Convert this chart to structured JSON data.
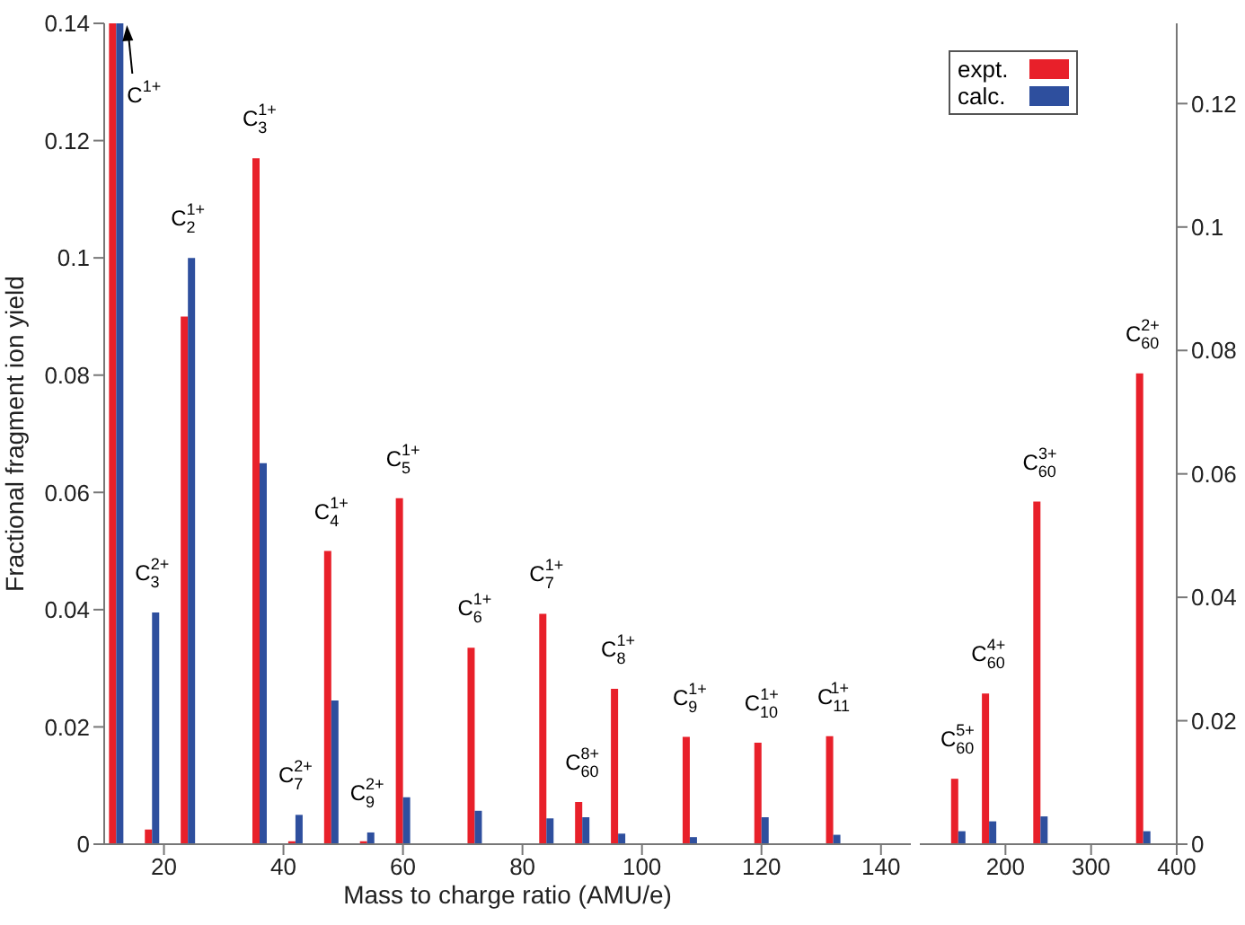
{
  "chart_data": [
    {
      "type": "bar",
      "ylabel": "Fractional fragment ion yield",
      "xlabel": "Mass to charge ratio (AMU/e)",
      "x": [
        12,
        18,
        24,
        36,
        42,
        48,
        54,
        60,
        72,
        84,
        90,
        96,
        108,
        120,
        132
      ],
      "xlim": [
        10,
        145
      ],
      "xticks": [
        20,
        40,
        60,
        80,
        100,
        120,
        140
      ],
      "ylim": [
        0,
        0.14
      ],
      "yticks": [
        0,
        0.02,
        0.04,
        0.06,
        0.08,
        0.1,
        0.12,
        0.14
      ],
      "legend": false,
      "series": [
        {
          "color": "#e8202a",
          "values": [
            0.14,
            0.0025,
            0.09,
            0.117,
            0.0005,
            0.05,
            0.0005,
            0.059,
            0.0335,
            0.0393,
            0.0072,
            0.0265,
            0.0183,
            0.0173,
            0.0184
          ]
        },
        {
          "color": "#2e4f9e",
          "values": [
            0.14,
            0.0395,
            0.1,
            0.065,
            0.005,
            0.0245,
            0.002,
            0.008,
            0.0057,
            0.0044,
            0.0046,
            0.0018,
            0.0012,
            0.0046,
            0.0016
          ]
        }
      ],
      "annotations": [
        {
          "text": "C$^{1+}$",
          "x": 12,
          "y": 0.14
        },
        {
          "text": "C$_{3}$$^{2+}$",
          "x": 18,
          "y": 0.0395
        },
        {
          "text": "C$_{2}$$^{1+}$",
          "x": 24,
          "y": 0.1
        },
        {
          "text": "C$_{3}$$^{1+}$",
          "x": 36,
          "y": 0.117
        },
        {
          "text": "C$_{7}$$^{2+}$",
          "x": 42,
          "y": 0.005
        },
        {
          "text": "C$_{4}$$^{1+}$",
          "x": 48,
          "y": 0.05
        },
        {
          "text": "C$_{9}$$^{2+}$",
          "x": 54,
          "y": 0.002
        },
        {
          "text": "C$_{5}$$^{1+}$",
          "x": 60,
          "y": 0.059
        },
        {
          "text": "C$_{6}$$^{1+}$",
          "x": 72,
          "y": 0.0335
        },
        {
          "text": "C$_{7}$$^{1+}$",
          "x": 84,
          "y": 0.0393
        },
        {
          "text": "C$_{60}$$^{8+}$",
          "x": 90,
          "y": 0.0072
        },
        {
          "text": "C$_{8}$$^{1+}$",
          "x": 96,
          "y": 0.0265
        },
        {
          "text": "C$_{9}$$^{1+}$",
          "x": 108,
          "y": 0.0183
        },
        {
          "text": "C$_{10}$$^{1+}$",
          "x": 120,
          "y": 0.0173
        },
        {
          "text": "C$_{11}$$^{1+}$",
          "x": 132,
          "y": 0.0184
        }
      ]
    },
    {
      "type": "bar",
      "x": [
        144,
        180,
        240,
        360
      ],
      "xlim": [
        100,
        400
      ],
      "xticks": [
        200,
        300,
        400
      ],
      "ylim": [
        0,
        0.133
      ],
      "yticks": [
        0,
        0.02,
        0.04,
        0.06,
        0.08,
        0.1,
        0.12
      ],
      "legend": "top left",
      "series": [
        {
          "name": "expt.",
          "color": "#e8202a",
          "values": [
            0.0106,
            0.0244,
            0.0555,
            0.0763
          ]
        },
        {
          "name": "calc.",
          "color": "#2e4f9e",
          "values": [
            0.0021,
            0.0037,
            0.0045,
            0.0021
          ]
        }
      ],
      "annotations": [
        {
          "text": "C$_{60}$$^{5+}$",
          "x": 144,
          "y": 0.0106
        },
        {
          "text": "C$_{60}$$^{4+}$",
          "x": 180,
          "y": 0.0244
        },
        {
          "text": "C$_{60}$$^{3+}$",
          "x": 240,
          "y": 0.0555
        },
        {
          "text": "C$_{60}$$^{2+}$",
          "x": 360,
          "y": 0.0763
        }
      ]
    }
  ]
}
